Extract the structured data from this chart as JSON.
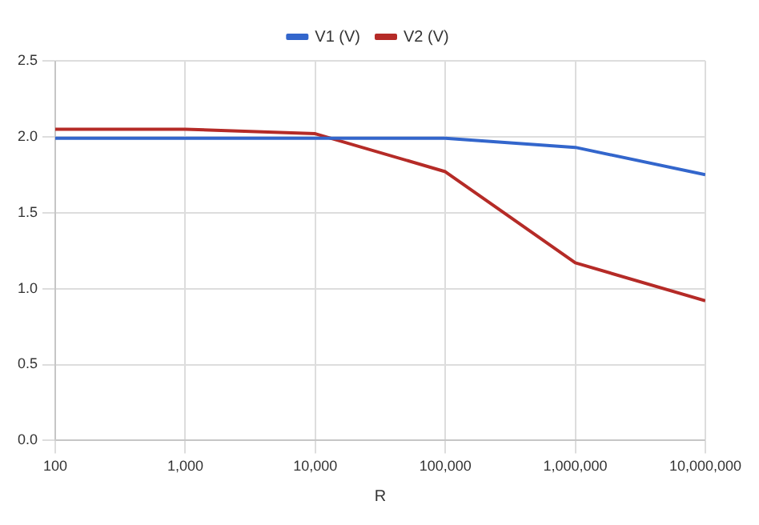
{
  "chart_data": {
    "type": "line",
    "xlabel": "R",
    "x": [
      100,
      1000,
      10000,
      100000,
      1000000,
      10000000
    ],
    "log": "x",
    "xlim": [
      100,
      10000000
    ],
    "xticks": [
      {
        "value": 100,
        "label": "100"
      },
      {
        "value": 1000,
        "label": "1,000"
      },
      {
        "value": 10000,
        "label": "10,000"
      },
      {
        "value": 100000,
        "label": "100,000"
      },
      {
        "value": 1000000,
        "label": "1,000,000"
      },
      {
        "value": 10000000,
        "label": "10,000,000"
      }
    ],
    "ylim": [
      0,
      2.5
    ],
    "yticks": [
      {
        "value": 0,
        "label": "0.0"
      },
      {
        "value": 0.5,
        "label": "0.5"
      },
      {
        "value": 1,
        "label": "1.0"
      },
      {
        "value": 1.5,
        "label": "1.5"
      },
      {
        "value": 2,
        "label": "2.0"
      },
      {
        "value": 2.5,
        "label": "2.5"
      }
    ],
    "grid": true,
    "legend": "top",
    "marker": "none",
    "line_style": "solid",
    "series": [
      {
        "name": "V1 (V)",
        "color": "#3366cc",
        "values": [
          1.99,
          1.99,
          1.99,
          1.99,
          1.93,
          1.75
        ]
      },
      {
        "name": "V2 (V)",
        "color": "#b52b27",
        "values": [
          2.05,
          2.05,
          2.02,
          1.77,
          1.17,
          0.92
        ]
      }
    ]
  }
}
